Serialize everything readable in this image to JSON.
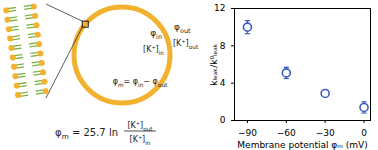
{
  "diagram": {
    "labels": {
      "phi_in": [
        {
          "t": "φ"
        },
        {
          "t": "in",
          "sub": true
        }
      ],
      "k_in": [
        {
          "t": "[K⁺]"
        },
        {
          "t": "in",
          "sub": true
        }
      ],
      "phi_out": [
        {
          "t": "φ"
        },
        {
          "t": "out",
          "sub": true
        }
      ],
      "k_out": [
        {
          "t": "[K⁺]"
        },
        {
          "t": "out",
          "sub": true
        }
      ],
      "phi_m": [
        {
          "t": "φ"
        },
        {
          "t": "m",
          "sub": true
        },
        {
          "t": "= φ"
        },
        {
          "t": "in",
          "sub": true
        },
        {
          "t": "− φ"
        },
        {
          "t": "out",
          "sub": true
        }
      ]
    },
    "equation": {
      "lhs": [
        {
          "t": "φ"
        },
        {
          "t": "m",
          "sub": true
        },
        {
          "t": " = 25.7 ln"
        }
      ],
      "numerator": [
        {
          "t": "[K⁺]"
        },
        {
          "t": "out",
          "sub": true
        }
      ],
      "denominator": [
        {
          "t": "[K⁺]"
        },
        {
          "t": "in",
          "sub": true
        }
      ]
    }
  },
  "chart_data": {
    "type": "scatter",
    "x_label": "Membrane potential φₘ (mV)",
    "y_label": "kₗₑₐₖ/k⁰ₗₑₐₖ",
    "x": [
      -90,
      -60,
      -30,
      0
    ],
    "values": [
      10.0,
      5.1,
      2.9,
      1.4
    ],
    "errors": [
      0.7,
      0.6,
      0.2,
      0.6
    ],
    "color": "#3a5bbf",
    "marker": "open circle",
    "xlim": [
      -100,
      5
    ],
    "xticks": [
      -90,
      -60,
      -30,
      0
    ],
    "ylim": [
      0,
      12
    ],
    "yticks": [
      0,
      4,
      8,
      12
    ],
    "grid": false
  }
}
